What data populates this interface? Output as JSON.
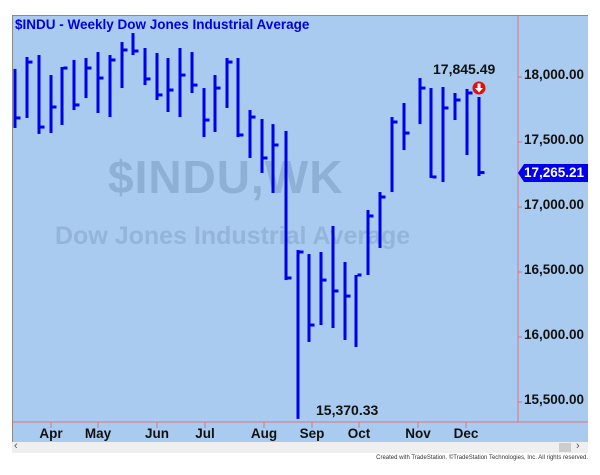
{
  "header": {
    "title": "$INDU - Weekly  Dow Jones Industrial Average"
  },
  "watermark": {
    "symbol": "$INDU,WK",
    "name": "Dow Jones Industrial Average"
  },
  "annotations": {
    "high_label": "17,845.49",
    "low_label": "15,370.33"
  },
  "last_price": {
    "label": "17,265.21",
    "color": "#0000ee"
  },
  "alert_icon": {
    "name": "down-arrow-alert-icon",
    "color": "#e01010"
  },
  "scrollbar": {
    "left_arrow": "‹",
    "right_arrow": "›"
  },
  "footer": {
    "text": "Created with TradeStation. ©TradeStation Technologies, Inc. All rights reserved."
  },
  "colors": {
    "background": "#a9cbf0",
    "bars": "#0000ee",
    "grid_lines": "#d9737f",
    "watermark": "#8fb0d6"
  },
  "chart_data": {
    "type": "ohlc_bar",
    "title": "$INDU - Weekly  Dow Jones Industrial Average",
    "xlabel": "",
    "ylabel": "",
    "ylim": [
      15350,
      18450
    ],
    "y_ticks": [
      "18,000.00",
      "17,500.00",
      "17,000.00",
      "16,500.00",
      "16,000.00",
      "15,500.00"
    ],
    "y_tick_values": [
      18000,
      17500,
      17000,
      16500,
      16000,
      15500
    ],
    "x_ticks": [
      "Apr",
      "May",
      "Jun",
      "Jul",
      "Aug",
      "Sep",
      "Oct",
      "Nov",
      "Dec"
    ],
    "x_tick_positions": [
      51,
      98,
      157,
      205,
      264,
      312,
      359,
      418,
      466
    ],
    "grid": false,
    "annotations": [
      {
        "text": "17,845.49",
        "type": "high"
      },
      {
        "text": "15,370.33",
        "type": "low"
      },
      {
        "text": "17,265.21",
        "type": "last"
      }
    ],
    "bars": [
      {
        "x": 15,
        "high": 18062,
        "low": 17608,
        "close": 17685
      },
      {
        "x": 27,
        "high": 18154,
        "low": 17685,
        "close": 18115
      },
      {
        "x": 39,
        "high": 18169,
        "low": 17562,
        "close": 17615
      },
      {
        "x": 51,
        "high": 18015,
        "low": 17569,
        "close": 17769
      },
      {
        "x": 62,
        "high": 18077,
        "low": 17631,
        "close": 18069
      },
      {
        "x": 74,
        "high": 18131,
        "low": 17746,
        "close": 17785
      },
      {
        "x": 86,
        "high": 18146,
        "low": 17838,
        "close": 18069
      },
      {
        "x": 98,
        "high": 18192,
        "low": 17723,
        "close": 17992
      },
      {
        "x": 110,
        "high": 18169,
        "low": 17692,
        "close": 18131
      },
      {
        "x": 122,
        "high": 18269,
        "low": 17915,
        "close": 18208
      },
      {
        "x": 133,
        "high": 18338,
        "low": 18169,
        "close": 18200
      },
      {
        "x": 145,
        "high": 18223,
        "low": 17938,
        "close": 17985
      },
      {
        "x": 157,
        "high": 18185,
        "low": 17823,
        "close": 17862
      },
      {
        "x": 168,
        "high": 18146,
        "low": 17731,
        "close": 17900
      },
      {
        "x": 180,
        "high": 18223,
        "low": 17692,
        "close": 18015
      },
      {
        "x": 192,
        "high": 18192,
        "low": 17877,
        "close": 17938
      },
      {
        "x": 204,
        "high": 17915,
        "low": 17538,
        "close": 17669
      },
      {
        "x": 215,
        "high": 18015,
        "low": 17577,
        "close": 17915
      },
      {
        "x": 227,
        "high": 18146,
        "low": 17762,
        "close": 18115
      },
      {
        "x": 238,
        "high": 18146,
        "low": 17538,
        "close": 17554
      },
      {
        "x": 250,
        "high": 17746,
        "low": 17377,
        "close": 17692
      },
      {
        "x": 262,
        "high": 17677,
        "low": 17262,
        "close": 17377
      },
      {
        "x": 273,
        "high": 17638,
        "low": 17108,
        "close": 17477
      },
      {
        "x": 286,
        "high": 17585,
        "low": 16438,
        "close": 16454
      },
      {
        "x": 298,
        "high": 16669,
        "low": 15370,
        "close": 16654
      },
      {
        "x": 309,
        "high": 16638,
        "low": 15962,
        "close": 16092
      },
      {
        "x": 321,
        "high": 16654,
        "low": 16092,
        "close": 16438
      },
      {
        "x": 333,
        "high": 16854,
        "low": 16069,
        "close": 16354
      },
      {
        "x": 345,
        "high": 16577,
        "low": 15977,
        "close": 16315
      },
      {
        "x": 356,
        "high": 16477,
        "low": 15923,
        "close": 16477
      },
      {
        "x": 368,
        "high": 16977,
        "low": 16477,
        "close": 16931
      },
      {
        "x": 380,
        "high": 17115,
        "low": 16685,
        "close": 17077
      },
      {
        "x": 392,
        "high": 17692,
        "low": 17115,
        "close": 17654
      },
      {
        "x": 404,
        "high": 17800,
        "low": 17438,
        "close": 17569
      },
      {
        "x": 420,
        "high": 17992,
        "low": 17638,
        "close": 17915
      },
      {
        "x": 431,
        "high": 17915,
        "low": 17223,
        "close": 17231
      },
      {
        "x": 443,
        "high": 17923,
        "low": 17192,
        "close": 17762
      },
      {
        "x": 455,
        "high": 17877,
        "low": 17669,
        "close": 17823
      },
      {
        "x": 467,
        "high": 17908,
        "low": 17400,
        "close": 17877
      },
      {
        "x": 479,
        "high": 17846,
        "low": 17238,
        "close": 17265
      }
    ]
  }
}
